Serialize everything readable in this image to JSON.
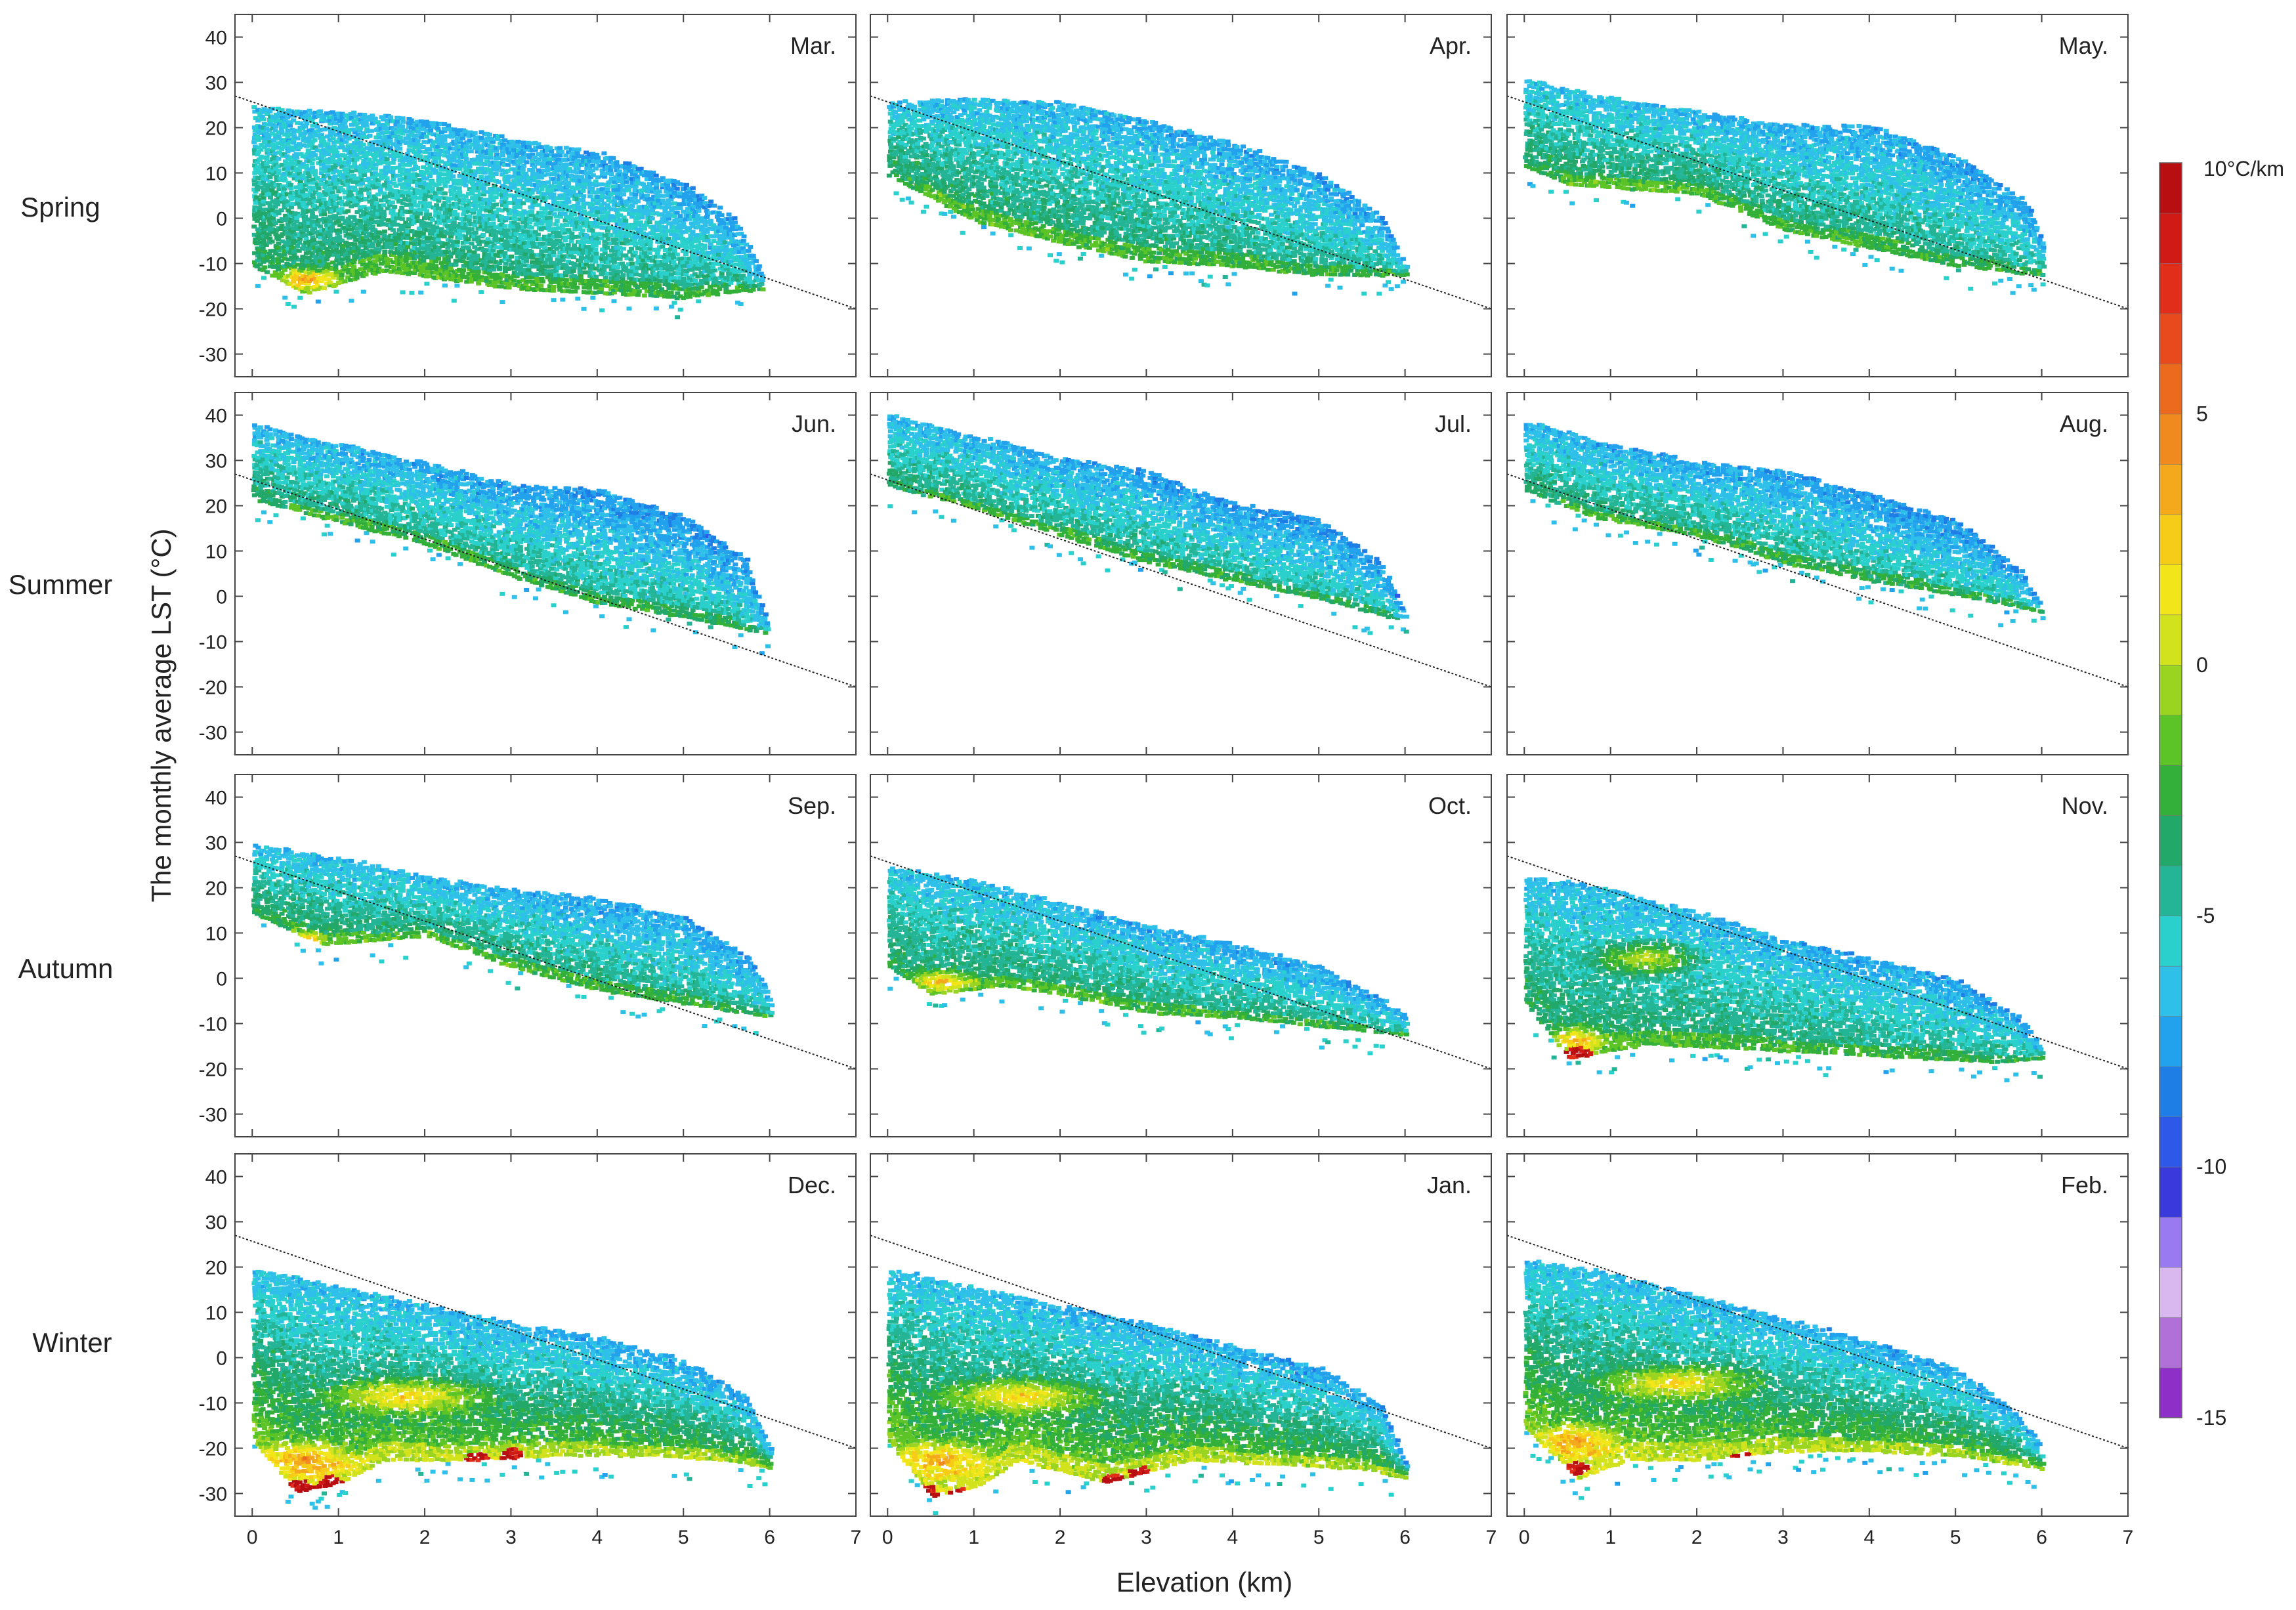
{
  "chart_data": {
    "type": "scatter",
    "title": "",
    "xlabel": "Elevation  (km)",
    "ylabel": "The monthly average LST  (°C)",
    "xlim": [
      -0.2,
      7
    ],
    "ylim": [
      -35,
      45
    ],
    "xticks": [
      "0",
      "1",
      "2",
      "3",
      "4",
      "5",
      "6",
      "7"
    ],
    "yticks": [
      "40",
      "30",
      "20",
      "10",
      "0",
      "-10",
      "-20",
      "-30"
    ],
    "seasons": [
      "Spring",
      "Summer",
      "Autumn",
      "Winter"
    ],
    "reference_line": {
      "description": "dotted lapse-rate reference line",
      "x": [
        -0.2,
        7
      ],
      "y": [
        27,
        -20
      ]
    },
    "colorbar": {
      "unit_label": "10°C/km",
      "ticks": [
        "5",
        "0",
        "-5",
        "-10",
        "-15"
      ],
      "tick_values": [
        5,
        0,
        -5,
        -10,
        -15
      ],
      "range": [
        -15,
        10
      ],
      "colors": [
        "#8e30c8",
        "#b070d8",
        "#d8b8ee",
        "#9a7af0",
        "#3a3adc",
        "#2e58e8",
        "#1e7ee6",
        "#22a2ec",
        "#2ec0e8",
        "#2ad0cc",
        "#24b496",
        "#22a868",
        "#32b03a",
        "#5cc426",
        "#9ad420",
        "#d2e21c",
        "#f2e61a",
        "#f6cc18",
        "#f4a81c",
        "#f08a1e",
        "#ec6a1e",
        "#e84a1e",
        "#e02e1a",
        "#d01a16",
        "#b80e12"
      ]
    },
    "panels": [
      {
        "month": "Mar.",
        "season": "Spring",
        "upper": [
          [
            0,
            25
          ],
          [
            1,
            24
          ],
          [
            2,
            22
          ],
          [
            3,
            18
          ],
          [
            4,
            15
          ],
          [
            5,
            8
          ],
          [
            5.6,
            0
          ],
          [
            5.9,
            -12
          ]
        ],
        "lower": [
          [
            0,
            -10
          ],
          [
            0.6,
            -16
          ],
          [
            1.5,
            -11
          ],
          [
            3,
            -15
          ],
          [
            4,
            -16
          ],
          [
            5,
            -17
          ],
          [
            5.9,
            -15
          ]
        ],
        "warm_spots": [
          [
            0.6,
            -13,
            0.5,
            3
          ]
        ],
        "hot_spots": []
      },
      {
        "month": "Apr.",
        "season": "Spring",
        "upper": [
          [
            0,
            26
          ],
          [
            1,
            27
          ],
          [
            2,
            26
          ],
          [
            3,
            22
          ],
          [
            4,
            17
          ],
          [
            5,
            10
          ],
          [
            5.7,
            1
          ],
          [
            6,
            -10
          ]
        ],
        "lower": [
          [
            0,
            10
          ],
          [
            0.5,
            5
          ],
          [
            1,
            0
          ],
          [
            2,
            -5
          ],
          [
            3,
            -9
          ],
          [
            4,
            -10
          ],
          [
            5,
            -12
          ],
          [
            6,
            -12
          ]
        ],
        "warm_spots": [],
        "hot_spots": []
      },
      {
        "month": "May.",
        "season": "Spring",
        "upper": [
          [
            0,
            31
          ],
          [
            1,
            27
          ],
          [
            2,
            24
          ],
          [
            3,
            21
          ],
          [
            4,
            21
          ],
          [
            5,
            14
          ],
          [
            5.8,
            4
          ],
          [
            6,
            -5
          ]
        ],
        "lower": [
          [
            0,
            12
          ],
          [
            0.5,
            8
          ],
          [
            2,
            6
          ],
          [
            3,
            -2
          ],
          [
            4,
            -6
          ],
          [
            5,
            -10
          ],
          [
            6,
            -12
          ]
        ],
        "warm_spots": [],
        "hot_spots": []
      },
      {
        "month": "Jun.",
        "season": "Summer",
        "upper": [
          [
            0,
            39
          ],
          [
            1,
            34
          ],
          [
            2,
            30
          ],
          [
            3,
            25
          ],
          [
            4,
            24
          ],
          [
            5,
            18
          ],
          [
            5.7,
            9
          ],
          [
            6,
            -8
          ]
        ],
        "lower": [
          [
            0,
            22
          ],
          [
            0.8,
            18
          ],
          [
            2,
            12
          ],
          [
            3,
            5
          ],
          [
            4,
            -1
          ],
          [
            5,
            -4
          ],
          [
            6,
            -8
          ]
        ],
        "warm_spots": [],
        "hot_spots": []
      },
      {
        "month": "Jul.",
        "season": "Summer",
        "upper": [
          [
            0,
            41
          ],
          [
            1,
            36
          ],
          [
            2,
            31
          ],
          [
            3,
            28
          ],
          [
            4,
            21
          ],
          [
            5,
            17
          ],
          [
            5.7,
            8
          ],
          [
            6,
            -4
          ]
        ],
        "lower": [
          [
            0,
            25
          ],
          [
            1,
            20
          ],
          [
            2,
            14
          ],
          [
            3,
            8
          ],
          [
            4,
            4
          ],
          [
            5,
            0
          ],
          [
            5.8,
            -4
          ],
          [
            6,
            -5
          ]
        ],
        "warm_spots": [],
        "hot_spots": []
      },
      {
        "month": "Aug.",
        "season": "Summer",
        "upper": [
          [
            0,
            39
          ],
          [
            1,
            34
          ],
          [
            2,
            30
          ],
          [
            3,
            28
          ],
          [
            4,
            23
          ],
          [
            5,
            17
          ],
          [
            5.7,
            7
          ],
          [
            6,
            -2
          ]
        ],
        "lower": [
          [
            0,
            24
          ],
          [
            0.8,
            18
          ],
          [
            2,
            14
          ],
          [
            3,
            8
          ],
          [
            4,
            4
          ],
          [
            5,
            1
          ],
          [
            6,
            -3
          ]
        ],
        "warm_spots": [],
        "hot_spots": []
      },
      {
        "month": "Sep.",
        "season": "Autumn",
        "upper": [
          [
            0,
            30
          ],
          [
            1,
            27
          ],
          [
            2,
            23
          ],
          [
            3,
            20
          ],
          [
            4,
            18
          ],
          [
            5,
            14
          ],
          [
            5.8,
            4
          ],
          [
            6,
            -4
          ]
        ],
        "lower": [
          [
            0,
            15
          ],
          [
            0.8,
            8
          ],
          [
            2,
            10
          ],
          [
            3,
            3
          ],
          [
            4,
            -2
          ],
          [
            5,
            -5
          ],
          [
            6,
            -8
          ]
        ],
        "warm_spots": [
          [
            0.5,
            9,
            0.4,
            2
          ]
        ],
        "hot_spots": []
      },
      {
        "month": "Oct.",
        "season": "Autumn",
        "upper": [
          [
            0,
            25
          ],
          [
            1,
            22
          ],
          [
            2,
            17
          ],
          [
            3,
            12
          ],
          [
            4,
            8
          ],
          [
            5,
            3
          ],
          [
            5.7,
            -4
          ],
          [
            6,
            -8
          ]
        ],
        "lower": [
          [
            0,
            3
          ],
          [
            0.5,
            -3
          ],
          [
            1.3,
            -1
          ],
          [
            2,
            -3
          ],
          [
            3,
            -7
          ],
          [
            4,
            -8
          ],
          [
            5,
            -10
          ],
          [
            6,
            -12
          ]
        ],
        "warm_spots": [
          [
            0.6,
            0,
            0.5,
            3
          ]
        ],
        "hot_spots": []
      },
      {
        "month": "Nov.",
        "season": "Autumn",
        "upper": [
          [
            0,
            23
          ],
          [
            1,
            20
          ],
          [
            2,
            15
          ],
          [
            3,
            9
          ],
          [
            4,
            5
          ],
          [
            5,
            0
          ],
          [
            5.7,
            -8
          ],
          [
            6,
            -14
          ]
        ],
        "lower": [
          [
            0,
            -5
          ],
          [
            0.5,
            -17
          ],
          [
            1.4,
            -14
          ],
          [
            2.5,
            -15
          ],
          [
            3.5,
            -16
          ],
          [
            4.5,
            -17
          ],
          [
            5.5,
            -18
          ],
          [
            6,
            -17
          ]
        ],
        "warm_spots": [
          [
            0.6,
            -13,
            0.4,
            4
          ],
          [
            1.4,
            5,
            0.8,
            5
          ]
        ],
        "hot_spots": [
          [
            0.6,
            -16
          ]
        ]
      },
      {
        "month": "Dec.",
        "season": "Winter",
        "upper": [
          [
            0,
            20
          ],
          [
            1,
            16
          ],
          [
            2,
            12
          ],
          [
            3,
            8
          ],
          [
            4,
            5
          ],
          [
            5,
            0
          ],
          [
            5.7,
            -8
          ],
          [
            6,
            -20
          ]
        ],
        "lower": [
          [
            0,
            -18
          ],
          [
            0.5,
            -29
          ],
          [
            1,
            -27
          ],
          [
            1.5,
            -22
          ],
          [
            2.5,
            -22
          ],
          [
            3.5,
            -21
          ],
          [
            4.5,
            -21
          ],
          [
            5.5,
            -22
          ],
          [
            6,
            -24
          ]
        ],
        "warm_spots": [
          [
            0.6,
            -22,
            0.7,
            5
          ],
          [
            1.8,
            -8,
            1.2,
            5
          ]
        ],
        "hot_spots": [
          [
            0.5,
            -28
          ],
          [
            0.7,
            -29
          ],
          [
            0.9,
            -27
          ],
          [
            2.6,
            -22
          ],
          [
            3.0,
            -21
          ]
        ]
      },
      {
        "month": "Jan.",
        "season": "Winter",
        "upper": [
          [
            0,
            20
          ],
          [
            1,
            16
          ],
          [
            2,
            12
          ],
          [
            3,
            8
          ],
          [
            4,
            3
          ],
          [
            5,
            -2
          ],
          [
            5.7,
            -10
          ],
          [
            6,
            -23
          ]
        ],
        "lower": [
          [
            0,
            -18
          ],
          [
            0.5,
            -30
          ],
          [
            1,
            -28
          ],
          [
            1.5,
            -22
          ],
          [
            2.5,
            -27
          ],
          [
            3.5,
            -22
          ],
          [
            4.5,
            -23
          ],
          [
            5.5,
            -24
          ],
          [
            6,
            -26
          ]
        ],
        "warm_spots": [
          [
            0.6,
            -22,
            0.7,
            5
          ],
          [
            1.5,
            -8,
            1.2,
            5
          ]
        ],
        "hot_spots": [
          [
            0.4,
            -29
          ],
          [
            0.6,
            -31
          ],
          [
            0.8,
            -30
          ],
          [
            2.6,
            -27
          ],
          [
            2.9,
            -25
          ]
        ]
      },
      {
        "month": "Feb.",
        "season": "Winter",
        "upper": [
          [
            0,
            22
          ],
          [
            1,
            19
          ],
          [
            2,
            14
          ],
          [
            3,
            9
          ],
          [
            4,
            4
          ],
          [
            5,
            -2
          ],
          [
            5.7,
            -12
          ],
          [
            6,
            -20
          ]
        ],
        "lower": [
          [
            0,
            -15
          ],
          [
            0.6,
            -26
          ],
          [
            1.2,
            -22
          ],
          [
            2,
            -22
          ],
          [
            3,
            -20
          ],
          [
            4,
            -20
          ],
          [
            5,
            -21
          ],
          [
            6,
            -24
          ]
        ],
        "warm_spots": [
          [
            0.6,
            -18,
            0.6,
            5
          ],
          [
            1.8,
            -5,
            1.2,
            5
          ]
        ],
        "hot_spots": [
          [
            0.6,
            -24
          ],
          [
            2.5,
            -22
          ]
        ]
      }
    ]
  }
}
